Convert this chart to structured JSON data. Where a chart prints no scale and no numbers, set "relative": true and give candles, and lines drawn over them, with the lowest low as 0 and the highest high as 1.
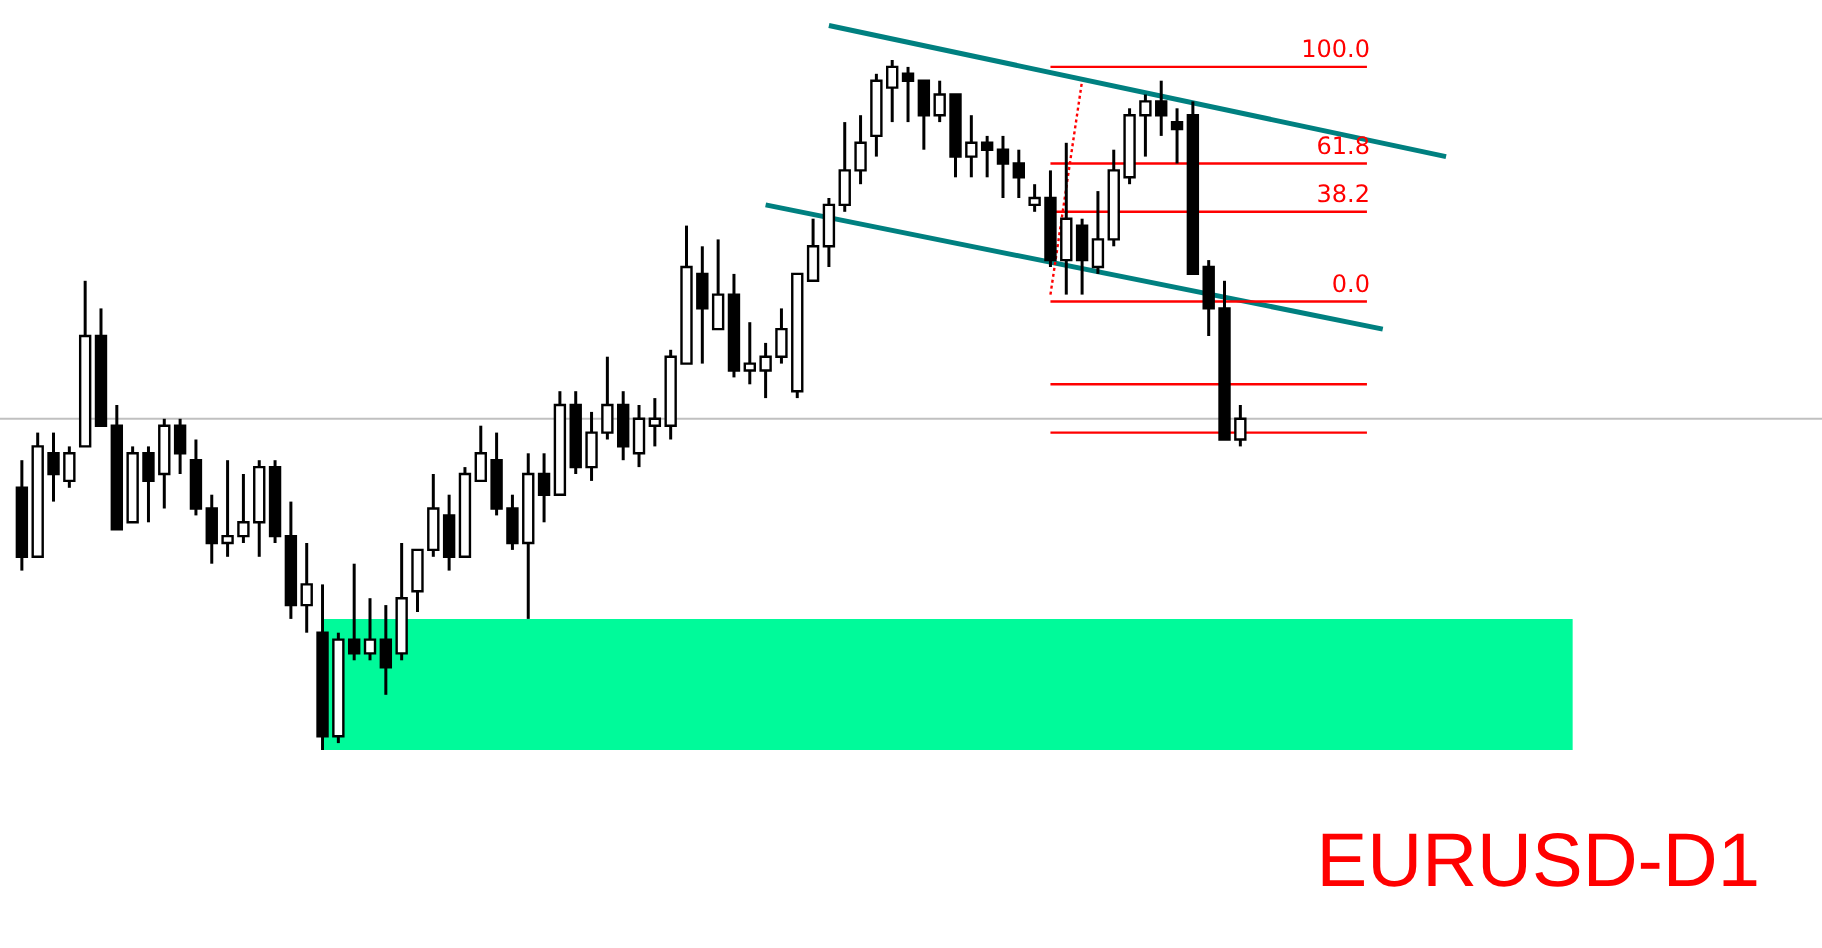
{
  "chart_data": {
    "type": "candlestick",
    "relative": true,
    "title": "EURUSD-D1",
    "categories": [
      null,
      null,
      null,
      null,
      null,
      null,
      null,
      null,
      null,
      null,
      null,
      null,
      null,
      null,
      null,
      null,
      null,
      null,
      null,
      null,
      null,
      null,
      null,
      null,
      null,
      null,
      null,
      null,
      null,
      null,
      null,
      null,
      null,
      null,
      null,
      null,
      null,
      null,
      null,
      null,
      null,
      null,
      null,
      null,
      null,
      null,
      null,
      null,
      null,
      null,
      null,
      null,
      null,
      null,
      null,
      null,
      null,
      null,
      null,
      null,
      null,
      null,
      null,
      null,
      null,
      null,
      null,
      null,
      null,
      null,
      null,
      null,
      null,
      null,
      null,
      null,
      null,
      null,
      null,
      null,
      null,
      null,
      null,
      null,
      null,
      null,
      null,
      null,
      null,
      null,
      null
    ],
    "ohlc": [
      [
        0.38,
        0.42,
        0.26,
        0.28
      ],
      [
        0.28,
        0.46,
        0.28,
        0.44
      ],
      [
        0.43,
        0.46,
        0.36,
        0.4
      ],
      [
        0.39,
        0.44,
        0.38,
        0.43
      ],
      [
        0.44,
        0.68,
        0.44,
        0.6
      ],
      [
        0.6,
        0.64,
        0.47,
        0.47
      ],
      [
        0.47,
        0.5,
        0.32,
        0.32
      ],
      [
        0.33,
        0.44,
        0.33,
        0.43
      ],
      [
        0.43,
        0.44,
        0.33,
        0.39
      ],
      [
        0.4,
        0.48,
        0.35,
        0.47
      ],
      [
        0.47,
        0.48,
        0.4,
        0.43
      ],
      [
        0.42,
        0.45,
        0.34,
        0.35
      ],
      [
        0.35,
        0.37,
        0.27,
        0.3
      ],
      [
        0.3,
        0.42,
        0.28,
        0.31
      ],
      [
        0.31,
        0.4,
        0.3,
        0.33
      ],
      [
        0.33,
        0.42,
        0.28,
        0.41
      ],
      [
        0.41,
        0.42,
        0.3,
        0.31
      ],
      [
        0.31,
        0.36,
        0.19,
        0.21
      ],
      [
        0.21,
        0.3,
        0.17,
        0.24
      ],
      [
        0.17,
        0.24,
        0,
        0.02
      ],
      [
        0.02,
        0.17,
        0.01,
        0.16
      ],
      [
        0.16,
        0.27,
        0.13,
        0.14
      ],
      [
        0.14,
        0.22,
        0.13,
        0.16
      ],
      [
        0.16,
        0.21,
        0.08,
        0.12
      ],
      [
        0.14,
        0.3,
        0.13,
        0.22
      ],
      [
        0.23,
        0.29,
        0.2,
        0.29
      ],
      [
        0.29,
        0.4,
        0.28,
        0.35
      ],
      [
        0.34,
        0.37,
        0.26,
        0.28
      ],
      [
        0.28,
        0.41,
        0.28,
        0.4
      ],
      [
        0.39,
        0.47,
        0.39,
        0.43
      ],
      [
        0.42,
        0.46,
        0.34,
        0.35
      ],
      [
        0.35,
        0.37,
        0.29,
        0.3
      ],
      [
        0.3,
        0.43,
        0.19,
        0.4
      ],
      [
        0.4,
        0.43,
        0.33,
        0.37
      ],
      [
        0.37,
        0.52,
        0.37,
        0.5
      ],
      [
        0.5,
        0.52,
        0.4,
        0.41
      ],
      [
        0.41,
        0.49,
        0.39,
        0.46
      ],
      [
        0.46,
        0.57,
        0.45,
        0.5
      ],
      [
        0.5,
        0.52,
        0.42,
        0.44
      ],
      [
        0.43,
        0.5,
        0.41,
        0.48
      ],
      [
        0.47,
        0.51,
        0.44,
        0.48
      ],
      [
        0.47,
        0.58,
        0.45,
        0.57
      ],
      [
        0.56,
        0.76,
        0.56,
        0.7
      ],
      [
        0.69,
        0.73,
        0.56,
        0.64
      ],
      [
        0.61,
        0.74,
        0.61,
        0.66
      ],
      [
        0.66,
        0.69,
        0.54,
        0.55
      ],
      [
        0.55,
        0.62,
        0.53,
        0.56
      ],
      [
        0.55,
        0.59,
        0.51,
        0.57
      ],
      [
        0.57,
        0.64,
        0.56,
        0.61
      ],
      [
        0.52,
        0.69,
        0.51,
        0.69
      ],
      [
        0.68,
        0.77,
        0.68,
        0.73
      ],
      [
        0.73,
        0.8,
        0.7,
        0.79
      ],
      [
        0.79,
        0.91,
        0.78,
        0.84
      ],
      [
        0.84,
        0.92,
        0.82,
        0.88
      ],
      [
        0.89,
        0.98,
        0.86,
        0.97
      ],
      [
        0.96,
        1,
        0.91,
        0.99
      ],
      [
        0.98,
        0.99,
        0.91,
        0.97
      ],
      [
        0.97,
        0.97,
        0.87,
        0.92
      ],
      [
        0.92,
        0.97,
        0.91,
        0.95
      ],
      [
        0.95,
        0.95,
        0.83,
        0.86
      ],
      [
        0.86,
        0.92,
        0.83,
        0.88
      ],
      [
        0.88,
        0.89,
        0.83,
        0.87
      ],
      [
        0.87,
        0.89,
        0.8,
        0.85
      ],
      [
        0.85,
        0.87,
        0.8,
        0.83
      ],
      [
        0.79,
        0.82,
        0.78,
        0.8
      ],
      [
        0.8,
        0.84,
        0.7,
        0.71
      ],
      [
        0.71,
        0.88,
        0.66,
        0.77
      ],
      [
        0.76,
        0.77,
        0.66,
        0.71
      ],
      [
        0.7,
        0.81,
        0.69,
        0.74
      ],
      [
        0.74,
        0.87,
        0.73,
        0.84
      ],
      [
        0.83,
        0.93,
        0.82,
        0.92
      ],
      [
        0.92,
        0.95,
        0.86,
        0.94
      ],
      [
        0.94,
        0.97,
        0.89,
        0.92
      ],
      [
        0.91,
        0.93,
        0.85,
        0.9
      ],
      [
        0.92,
        0.94,
        0.69,
        0.69
      ],
      [
        0.7,
        0.71,
        0.6,
        0.64
      ],
      [
        0.64,
        0.68,
        0.45,
        0.45
      ],
      [
        0.45,
        0.5,
        0.44,
        0.48
      ],
      null,
      null,
      null,
      null,
      null,
      null,
      null,
      null,
      null,
      null,
      null,
      null,
      null
    ],
    "series": [
      {
        "type": "line",
        "color": "#008080",
        "line_style": "solid",
        "values": [
          null,
          null,
          null,
          null,
          null,
          null,
          null,
          null,
          null,
          null,
          null,
          null,
          null,
          null,
          null,
          null,
          null,
          null,
          null,
          null,
          null,
          null,
          null,
          null,
          null,
          null,
          null,
          null,
          null,
          null,
          null,
          null,
          null,
          null,
          null,
          null,
          null,
          null,
          null,
          null,
          null,
          null,
          null,
          null,
          null,
          null,
          null,
          null,
          null,
          null,
          null,
          1.05,
          null,
          null,
          null,
          null,
          null,
          null,
          null,
          null,
          null,
          null,
          null,
          null,
          null,
          null,
          null,
          null,
          null,
          null,
          null,
          null,
          null,
          null,
          null,
          null,
          null,
          null,
          null,
          null,
          null,
          null,
          null,
          null,
          null,
          null,
          null,
          null,
          null,
          null,
          0.86
        ]
      },
      {
        "type": "line",
        "color": "#008080",
        "line_style": "solid",
        "values": [
          null,
          null,
          null,
          null,
          null,
          null,
          null,
          null,
          null,
          null,
          null,
          null,
          null,
          null,
          null,
          null,
          null,
          null,
          null,
          null,
          null,
          null,
          null,
          null,
          null,
          null,
          null,
          null,
          null,
          null,
          null,
          null,
          null,
          null,
          null,
          null,
          null,
          null,
          null,
          null,
          null,
          null,
          null,
          null,
          null,
          null,
          null,
          0.79,
          null,
          null,
          null,
          null,
          null,
          null,
          null,
          null,
          null,
          null,
          null,
          null,
          null,
          null,
          null,
          null,
          null,
          null,
          null,
          null,
          null,
          null,
          null,
          null,
          null,
          null,
          null,
          null,
          null,
          null,
          null,
          null,
          null,
          null,
          null,
          null,
          null,
          null,
          0.61,
          null,
          null,
          null,
          null
        ]
      },
      {
        "type": "line",
        "color": "#ff0000",
        "line_style": "solid",
        "values": [
          null,
          null,
          null,
          null,
          null,
          null,
          null,
          null,
          null,
          null,
          null,
          null,
          null,
          null,
          null,
          null,
          null,
          null,
          null,
          null,
          null,
          null,
          null,
          null,
          null,
          null,
          null,
          null,
          null,
          null,
          null,
          null,
          null,
          null,
          null,
          null,
          null,
          null,
          null,
          null,
          null,
          null,
          null,
          null,
          null,
          null,
          null,
          null,
          null,
          null,
          null,
          null,
          null,
          null,
          null,
          null,
          null,
          null,
          null,
          null,
          null,
          null,
          null,
          null,
          null,
          0.99,
          null,
          null,
          null,
          null,
          null,
          null,
          null,
          null,
          null,
          null,
          null,
          null,
          null,
          null,
          null,
          null,
          null,
          null,
          null,
          0.99,
          null,
          null,
          null,
          null,
          null
        ]
      },
      {
        "type": "line",
        "color": "#ff0000",
        "line_style": "solid",
        "values": [
          null,
          null,
          null,
          null,
          null,
          null,
          null,
          null,
          null,
          null,
          null,
          null,
          null,
          null,
          null,
          null,
          null,
          null,
          null,
          null,
          null,
          null,
          null,
          null,
          null,
          null,
          null,
          null,
          null,
          null,
          null,
          null,
          null,
          null,
          null,
          null,
          null,
          null,
          null,
          null,
          null,
          null,
          null,
          null,
          null,
          null,
          null,
          null,
          null,
          null,
          null,
          null,
          null,
          null,
          null,
          null,
          null,
          null,
          null,
          null,
          null,
          null,
          null,
          null,
          null,
          0.85,
          null,
          null,
          null,
          null,
          null,
          null,
          null,
          null,
          null,
          null,
          null,
          null,
          null,
          null,
          null,
          null,
          null,
          null,
          null,
          0.85,
          null,
          null,
          null,
          null,
          null
        ]
      },
      {
        "type": "line",
        "color": "#ff0000",
        "line_style": "solid",
        "values": [
          null,
          null,
          null,
          null,
          null,
          null,
          null,
          null,
          null,
          null,
          null,
          null,
          null,
          null,
          null,
          null,
          null,
          null,
          null,
          null,
          null,
          null,
          null,
          null,
          null,
          null,
          null,
          null,
          null,
          null,
          null,
          null,
          null,
          null,
          null,
          null,
          null,
          null,
          null,
          null,
          null,
          null,
          null,
          null,
          null,
          null,
          null,
          null,
          null,
          null,
          null,
          null,
          null,
          null,
          null,
          null,
          null,
          null,
          null,
          null,
          null,
          null,
          null,
          null,
          null,
          0.78,
          null,
          null,
          null,
          null,
          null,
          null,
          null,
          null,
          null,
          null,
          null,
          null,
          null,
          null,
          null,
          null,
          null,
          null,
          null,
          0.78,
          null,
          null,
          null,
          null,
          null
        ]
      },
      {
        "type": "line",
        "color": "#ff0000",
        "line_style": "solid",
        "values": [
          null,
          null,
          null,
          null,
          null,
          null,
          null,
          null,
          null,
          null,
          null,
          null,
          null,
          null,
          null,
          null,
          null,
          null,
          null,
          null,
          null,
          null,
          null,
          null,
          null,
          null,
          null,
          null,
          null,
          null,
          null,
          null,
          null,
          null,
          null,
          null,
          null,
          null,
          null,
          null,
          null,
          null,
          null,
          null,
          null,
          null,
          null,
          null,
          null,
          null,
          null,
          null,
          null,
          null,
          null,
          null,
          null,
          null,
          null,
          null,
          null,
          null,
          null,
          null,
          null,
          0.65,
          null,
          null,
          null,
          null,
          null,
          null,
          null,
          null,
          null,
          null,
          null,
          null,
          null,
          null,
          null,
          null,
          null,
          null,
          null,
          0.65,
          null,
          null,
          null,
          null,
          null
        ]
      },
      {
        "type": "line",
        "color": "#ff0000",
        "line_style": "solid",
        "values": [
          null,
          null,
          null,
          null,
          null,
          null,
          null,
          null,
          null,
          null,
          null,
          null,
          null,
          null,
          null,
          null,
          null,
          null,
          null,
          null,
          null,
          null,
          null,
          null,
          null,
          null,
          null,
          null,
          null,
          null,
          null,
          null,
          null,
          null,
          null,
          null,
          null,
          null,
          null,
          null,
          null,
          null,
          null,
          null,
          null,
          null,
          null,
          null,
          null,
          null,
          null,
          null,
          null,
          null,
          null,
          null,
          null,
          null,
          null,
          null,
          null,
          null,
          null,
          null,
          null,
          0.53,
          null,
          null,
          null,
          null,
          null,
          null,
          null,
          null,
          null,
          null,
          null,
          null,
          null,
          null,
          null,
          null,
          null,
          null,
          null,
          0.53,
          null,
          null,
          null,
          null,
          null
        ]
      },
      {
        "type": "line",
        "color": "#ff0000",
        "line_style": "solid",
        "values": [
          null,
          null,
          null,
          null,
          null,
          null,
          null,
          null,
          null,
          null,
          null,
          null,
          null,
          null,
          null,
          null,
          null,
          null,
          null,
          null,
          null,
          null,
          null,
          null,
          null,
          null,
          null,
          null,
          null,
          null,
          null,
          null,
          null,
          null,
          null,
          null,
          null,
          null,
          null,
          null,
          null,
          null,
          null,
          null,
          null,
          null,
          null,
          null,
          null,
          null,
          null,
          null,
          null,
          null,
          null,
          null,
          null,
          null,
          null,
          null,
          null,
          null,
          null,
          null,
          null,
          0.46,
          null,
          null,
          null,
          null,
          null,
          null,
          null,
          null,
          null,
          null,
          null,
          null,
          null,
          null,
          null,
          null,
          null,
          null,
          null,
          0.46,
          null,
          null,
          null,
          null,
          null
        ]
      },
      {
        "type": "line",
        "color": "#ff0000",
        "line_style": "dotted",
        "values": [
          null,
          null,
          null,
          null,
          null,
          null,
          null,
          null,
          null,
          null,
          null,
          null,
          null,
          null,
          null,
          null,
          null,
          null,
          null,
          null,
          null,
          null,
          null,
          null,
          null,
          null,
          null,
          null,
          null,
          null,
          null,
          null,
          null,
          null,
          null,
          null,
          null,
          null,
          null,
          null,
          null,
          null,
          null,
          null,
          null,
          null,
          null,
          null,
          null,
          null,
          null,
          null,
          null,
          null,
          null,
          null,
          null,
          null,
          null,
          null,
          null,
          null,
          null,
          null,
          null,
          0.66,
          null,
          0.97,
          null,
          null,
          null,
          null,
          null,
          null,
          null,
          null,
          null,
          null,
          null,
          null,
          null,
          null,
          null,
          null,
          null,
          null,
          null,
          null,
          null,
          null,
          null
        ]
      }
    ],
    "ref_lines": [
      {
        "axis": "y",
        "value": 0.48,
        "color": "#c0c0c0"
      }
    ],
    "bands": [
      {
        "axis": "y",
        "from": 0,
        "to": 0.19,
        "color": "#00fa9a"
      }
    ],
    "annotations": [
      {
        "text": "100.0",
        "y": 0.99
      },
      {
        "text": "61.8",
        "y": 0.85
      },
      {
        "text": "38.2",
        "y": 0.78
      },
      {
        "text": "0.0",
        "y": 0.65
      }
    ]
  }
}
